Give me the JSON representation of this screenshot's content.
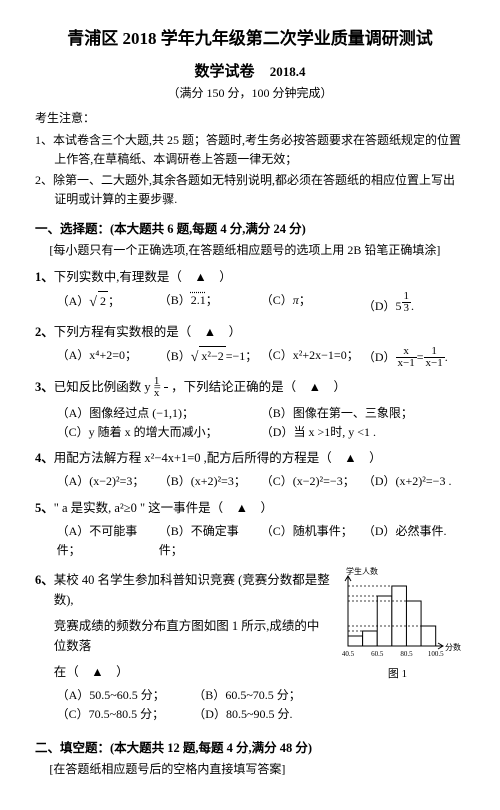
{
  "header": {
    "title": "青浦区 2018 学年九年级第二次学业质量调研测试",
    "subtitle": "数学试卷",
    "date": "2018.4",
    "meta": "（满分 150 分，100 分钟完成）",
    "notice_head": "考生注意：",
    "notice1": "1、本试卷含三个大题,共 25 题；答题时,考生务必按答题要求在答题纸规定的位置上作答,在草稿纸、本调研卷上答题一律无效；",
    "notice2": "2、除第一、二大题外,其余各题如无特别说明,都必须在答题纸的相应位置上写出证明或计算的主要步骤."
  },
  "sec1": {
    "head": "一、选择题：(本大题共 6 题,每题 4 分,满分 24 分)",
    "sub": "[每小题只有一个正确选项,在答题纸相应题号的选项上用 2B 铅笔正确填涂]"
  },
  "q1": {
    "stem_a": "1、",
    "stem_b": "下列实数中,有理数是（　▲　）",
    "aL": "（A）",
    "bL": "（B）",
    "cL": "（C）",
    "dL": "（D）",
    "a_val": "2",
    "b_val": "2.1",
    "c_val": "π",
    "d_base": "5",
    "d_num": "1",
    "d_den": "3",
    "punct": "；",
    "pend": "."
  },
  "q2": {
    "stem_a": "2、",
    "stem_b": "下列方程有实数根的是（　▲　）",
    "aL": "（A）",
    "bL": "（B）",
    "cL": "（C）",
    "dL": "（D）",
    "a": "x⁴+2=0；",
    "b_pre": "",
    "b_inner": "x²−2",
    "b_post": "=−1；",
    "c": "x²+2x−1=0；",
    "d_ln": "x",
    "d_ld": "x−1",
    "d_mid": "=",
    "d_rn": "1",
    "d_rd": "x−1",
    "d_end": "."
  },
  "q3": {
    "stem_a": "3、",
    "stem_b_pre": "已知反比例函数 y = ",
    "stem_b_num": "1",
    "stem_b_den": "x",
    "stem_b_post": " ，下列结论正确的是（　▲　）",
    "aL": "（A）",
    "bL": "（B）",
    "cL": "（C）",
    "dL": "（D）",
    "a": "图像经过点 (−1,1)；",
    "b": "图像在第一、三象限；",
    "c": "y 随着 x 的增大而减小；",
    "d": "当 x >1时,  y <1 ."
  },
  "q4": {
    "stem_a": "4、",
    "stem_b": "用配方法解方程 x²−4x+1=0 ,配方后所得的方程是（　▲　）",
    "aL": "（A）",
    "bL": "（B）",
    "cL": "（C）",
    "dL": "（D）",
    "a": "(x−2)²=3；",
    "b": "(x+2)²=3；",
    "c": "(x−2)²=−3；",
    "d": "(x+2)²=−3 ."
  },
  "q5": {
    "stem_a": "5、",
    "stem_b": "\" a 是实数, a²≥0 \" 这一事件是（　▲　）",
    "aL": "（A）",
    "bL": "（B）",
    "cL": "（C）",
    "dL": "（D）",
    "a": "不可能事件；",
    "b": "不确定事件；",
    "c": "随机事件；",
    "d": "必然事件."
  },
  "q6": {
    "stem_a": "6、",
    "stem_b1": "某校 40 名学生参加科普知识竞赛 (竞赛分数都是整数),",
    "stem_b2": "竞赛成绩的频数分布直方图如图 1 所示,成绩的中位数落",
    "stem_b3": "在（　▲　）",
    "aL": "（A）",
    "bL": "（B）",
    "cL": "（C）",
    "dL": "（D）",
    "a": "50.5~60.5 分；",
    "b": "60.5~70.5 分；",
    "c": "70.5~80.5 分；",
    "d": "80.5~90.5 分."
  },
  "sec2": {
    "head": "二、填空题：(本大题共 12 题,每题 4 分,满分 48 分)",
    "sub": "[在答题纸相应题号后的空格内直接填写答案]"
  },
  "chart": {
    "ylabel": "学生人数",
    "xlabel": "分数",
    "figlabel": "图 1",
    "xticks": [
      "40.5",
      "60.5",
      "80.5",
      "100.5"
    ],
    "bars": [
      2,
      3,
      10,
      12,
      9,
      4
    ],
    "bar_color": "#ffffff",
    "line_color": "#000000",
    "dash_color": "#000000",
    "xlim": [
      40.5,
      100.5
    ],
    "ylim": [
      0,
      14
    ],
    "bg": "#ffffff"
  }
}
